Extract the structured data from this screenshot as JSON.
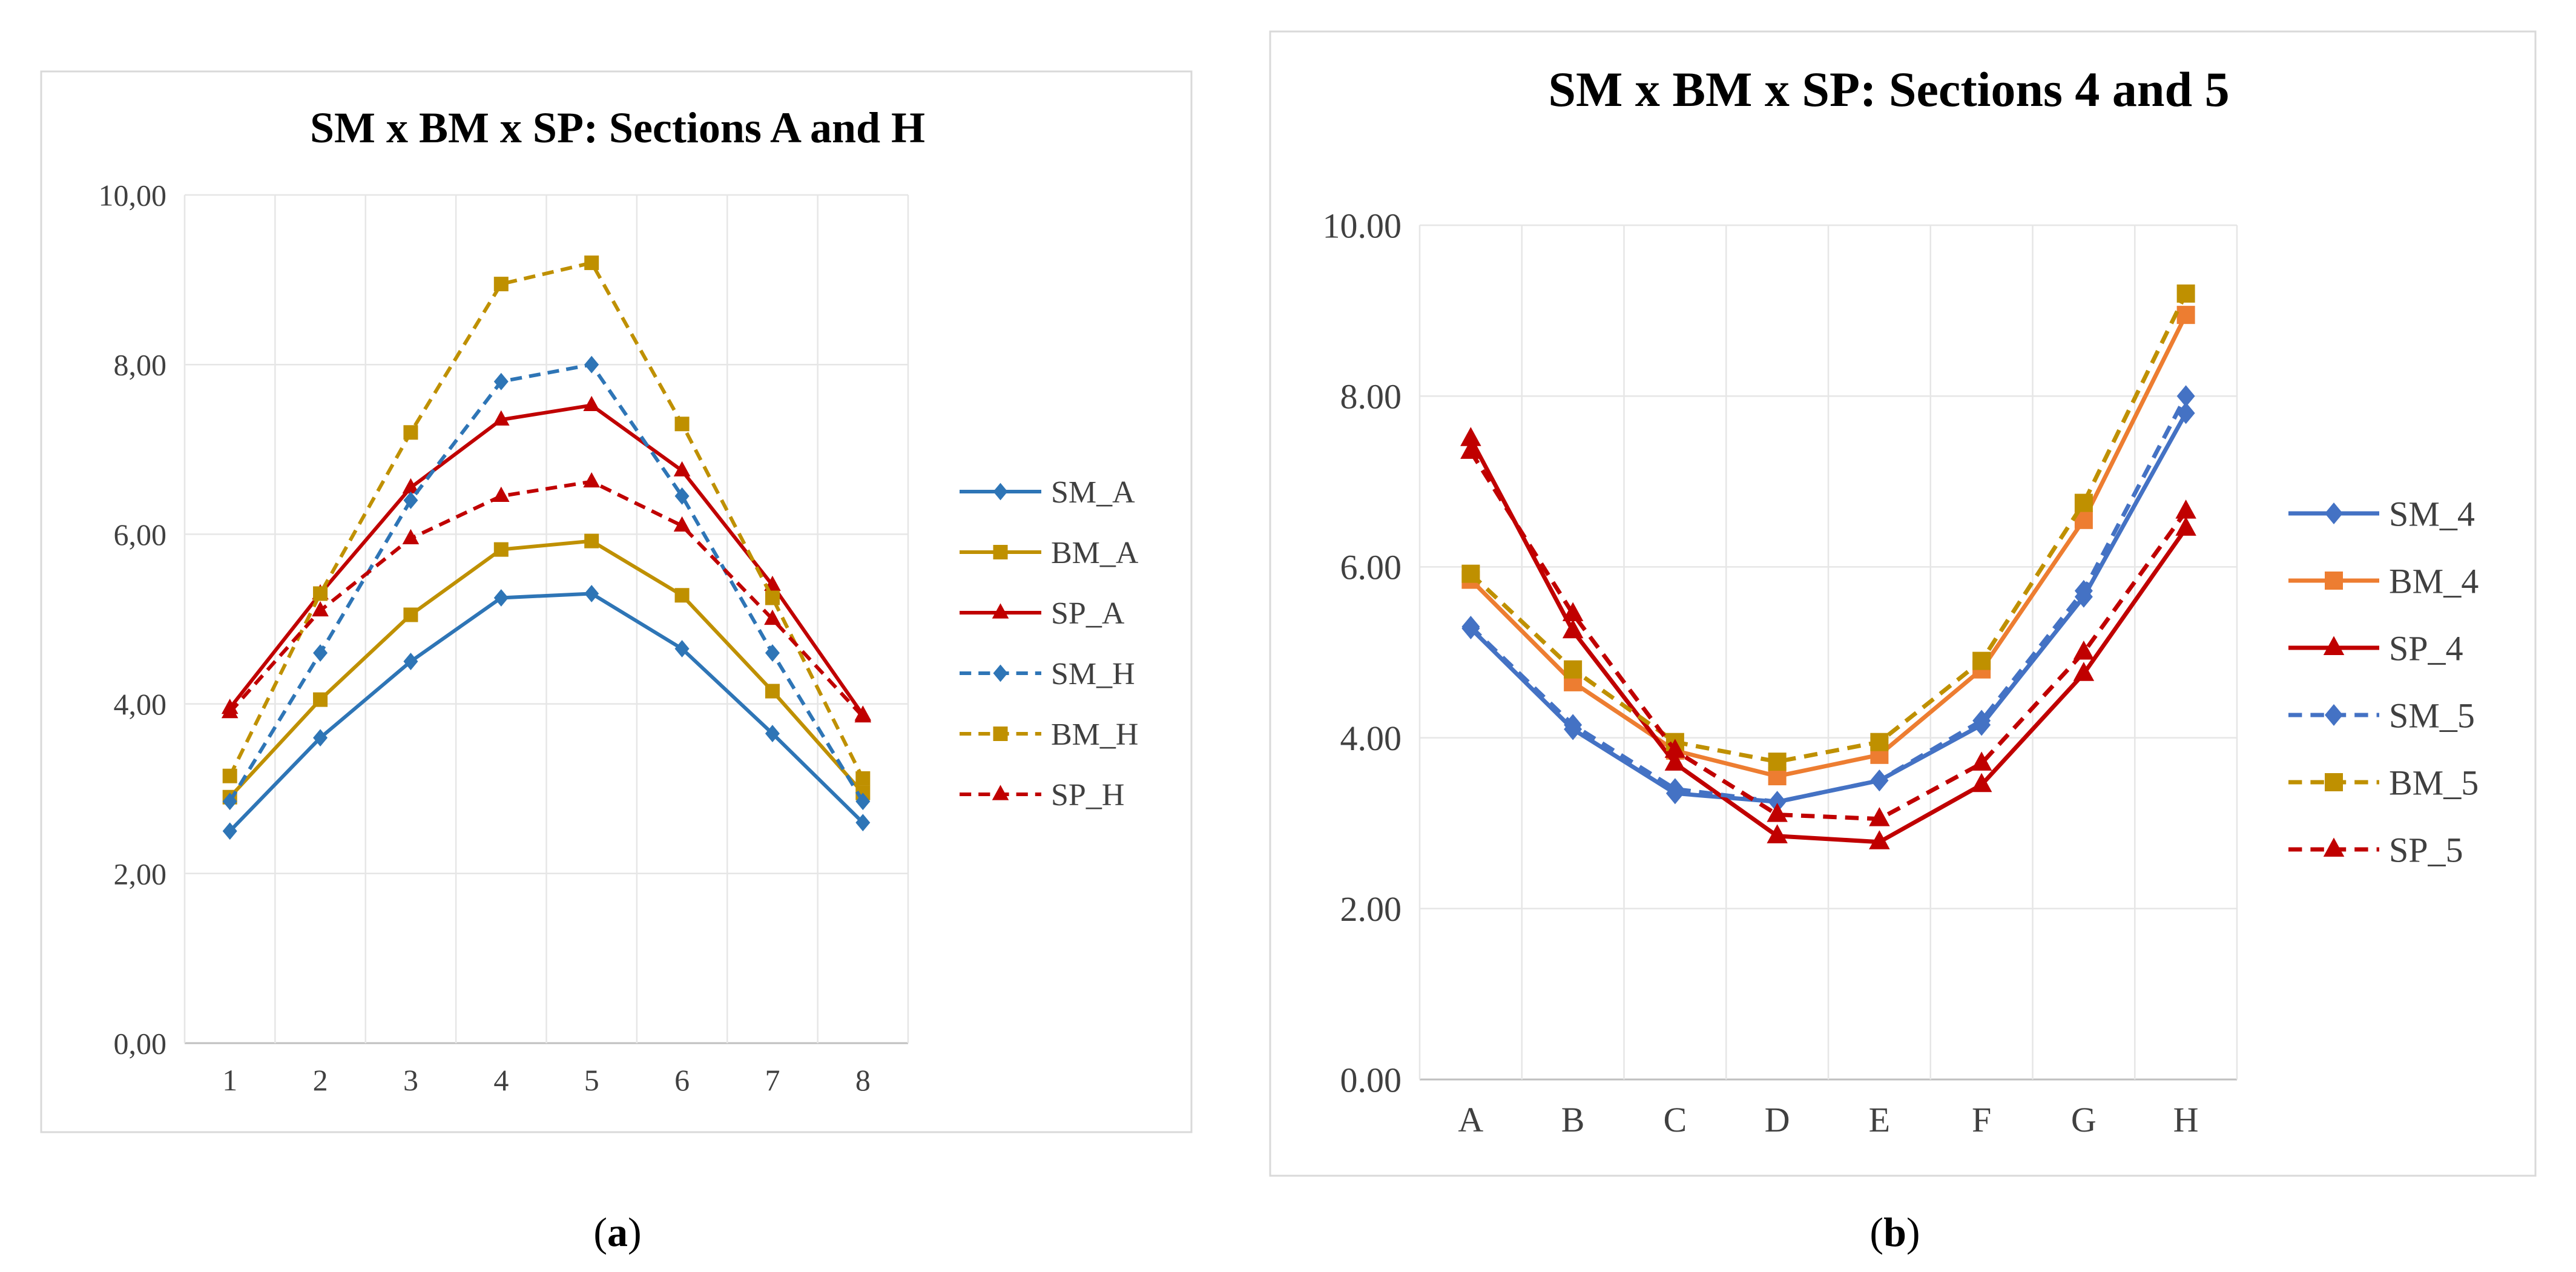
{
  "chart_data": [
    {
      "type": "line",
      "title": "SM x BM x SP: Sections A and H",
      "caption_letter": "a",
      "xlabel": "",
      "ylabel": "",
      "categories": [
        "1",
        "2",
        "3",
        "4",
        "5",
        "6",
        "7",
        "8"
      ],
      "y_tick_labels": [
        "0,00",
        "2,00",
        "4,00",
        "6,00",
        "8,00",
        "10,00"
      ],
      "ylim": [
        0,
        10
      ],
      "grid": true,
      "legend_position": "right",
      "series": [
        {
          "name": "SM_A",
          "values": [
            2.5,
            3.6,
            4.5,
            5.25,
            5.3,
            4.65,
            3.65,
            2.6
          ],
          "color": "#2e75b6",
          "dash": "solid",
          "marker": "diamond"
        },
        {
          "name": "BM_A",
          "values": [
            2.9,
            4.05,
            5.05,
            5.82,
            5.92,
            5.28,
            4.15,
            2.95
          ],
          "color": "#bf9000",
          "dash": "solid",
          "marker": "square"
        },
        {
          "name": "SP_A",
          "values": [
            3.95,
            5.3,
            6.55,
            7.35,
            7.52,
            6.75,
            5.4,
            3.87
          ],
          "color": "#c00000",
          "dash": "solid",
          "marker": "triangle"
        },
        {
          "name": "SM_H",
          "values": [
            2.85,
            4.6,
            6.4,
            7.8,
            8.0,
            6.45,
            4.6,
            2.85
          ],
          "color": "#2e75b6",
          "dash": "dashed",
          "marker": "diamond"
        },
        {
          "name": "BM_H",
          "values": [
            3.15,
            5.3,
            7.2,
            8.95,
            9.2,
            7.3,
            5.25,
            3.12
          ],
          "color": "#bf9000",
          "dash": "dashed",
          "marker": "square"
        },
        {
          "name": "SP_H",
          "values": [
            3.9,
            5.1,
            5.95,
            6.45,
            6.62,
            6.1,
            5.0,
            3.85
          ],
          "color": "#c00000",
          "dash": "dashed",
          "marker": "triangle"
        }
      ]
    },
    {
      "type": "line",
      "title": "SM x BM x SP: Sections 4 and 5",
      "caption_letter": "b",
      "xlabel": "",
      "ylabel": "",
      "categories": [
        "A",
        "B",
        "C",
        "D",
        "E",
        "F",
        "G",
        "H"
      ],
      "y_tick_labels": [
        "0.00",
        "2.00",
        "4.00",
        "6.00",
        "8.00",
        "10.00"
      ],
      "ylim": [
        0,
        10
      ],
      "grid": true,
      "legend_position": "right",
      "series": [
        {
          "name": "SM_4",
          "values": [
            5.28,
            4.1,
            3.35,
            3.25,
            3.5,
            4.15,
            5.65,
            7.8
          ],
          "color": "#4472c4",
          "dash": "solid",
          "marker": "diamond"
        },
        {
          "name": "BM_4",
          "values": [
            5.85,
            4.65,
            3.85,
            3.55,
            3.8,
            4.8,
            6.55,
            8.95
          ],
          "color": "#ed7d31",
          "dash": "solid",
          "marker": "square"
        },
        {
          "name": "SP_4",
          "values": [
            7.5,
            5.25,
            3.7,
            2.85,
            2.78,
            3.45,
            4.75,
            6.45
          ],
          "color": "#c00000",
          "dash": "solid",
          "marker": "triangle"
        },
        {
          "name": "SM_5",
          "values": [
            5.3,
            4.15,
            3.4,
            3.25,
            3.5,
            4.2,
            5.72,
            8.0
          ],
          "color": "#4472c4",
          "dash": "dashed",
          "marker": "diamond"
        },
        {
          "name": "BM_5",
          "values": [
            5.92,
            4.8,
            3.95,
            3.72,
            3.95,
            4.9,
            6.75,
            9.2
          ],
          "color": "#bf9000",
          "dash": "dashed",
          "marker": "square"
        },
        {
          "name": "SP_5",
          "values": [
            7.35,
            5.45,
            3.85,
            3.1,
            3.05,
            3.7,
            5.0,
            6.65
          ],
          "color": "#c00000",
          "dash": "dashed",
          "marker": "triangle"
        }
      ]
    }
  ]
}
